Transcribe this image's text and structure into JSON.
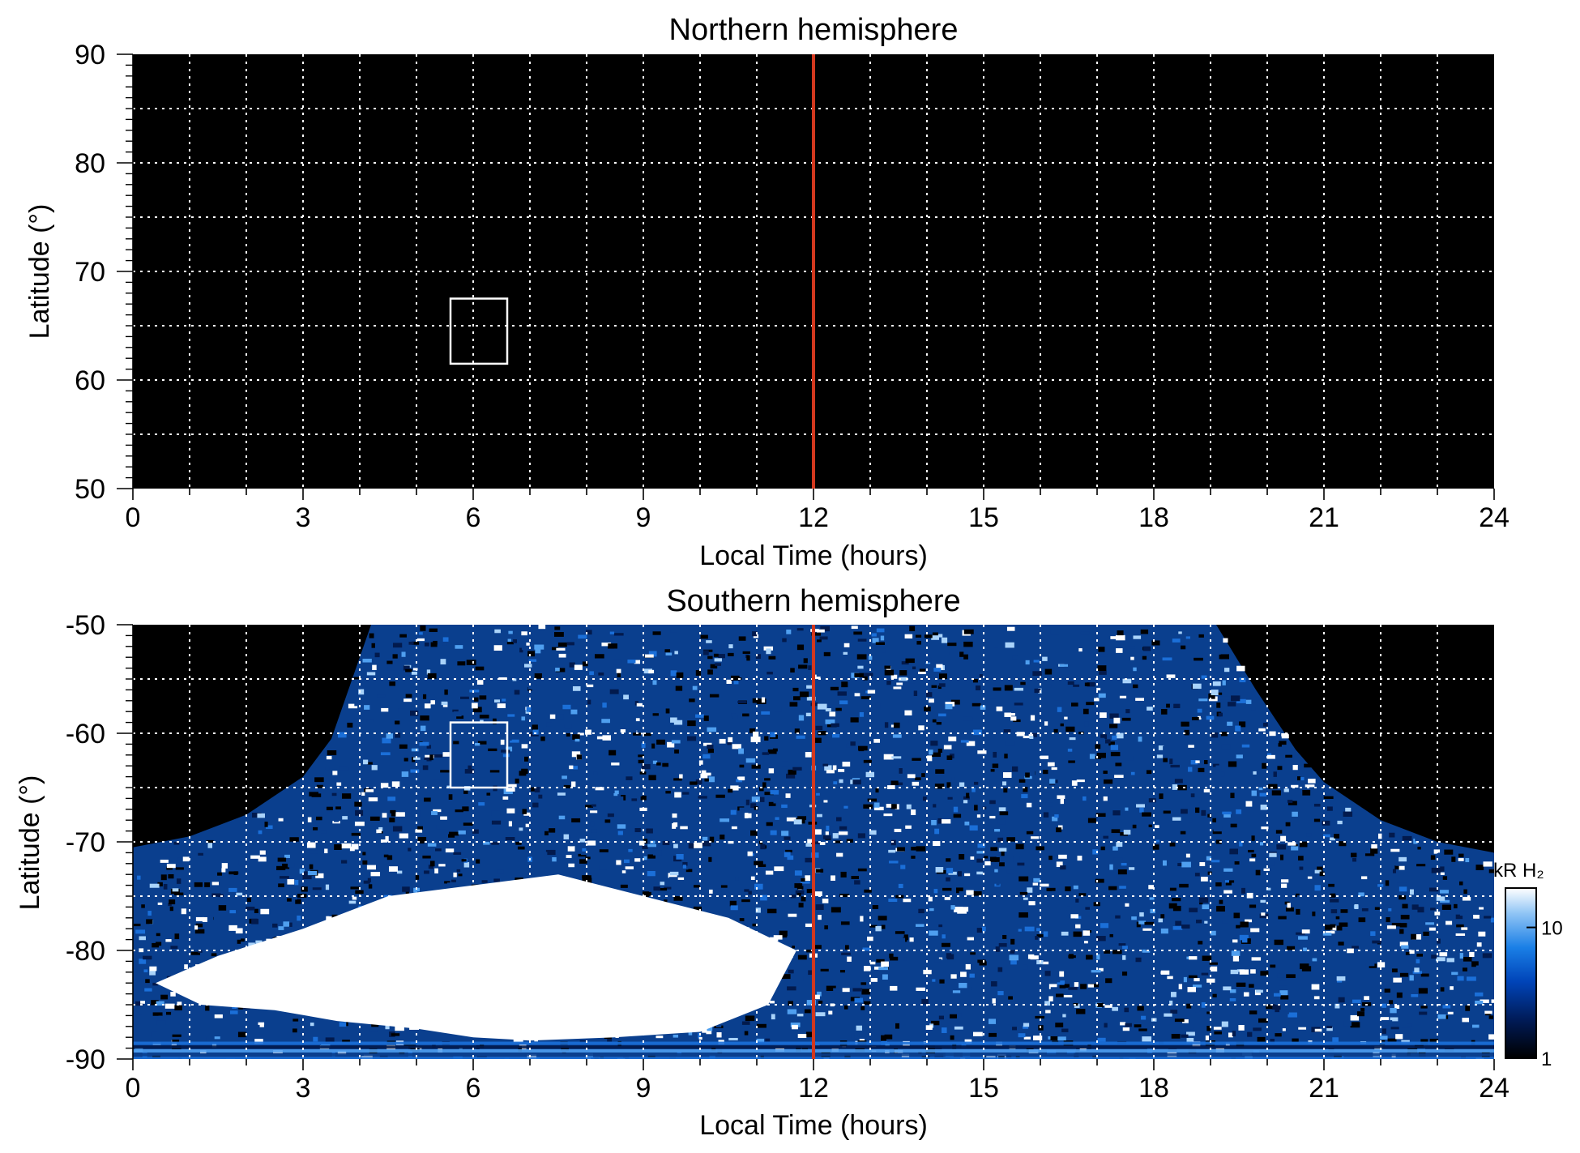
{
  "chart_data": [
    {
      "type": "heatmap",
      "title": "Northern hemisphere",
      "xlabel": "Local Time (hours)",
      "ylabel": "Latitude (°)",
      "xlim": [
        0,
        24
      ],
      "ylim": [
        50,
        90
      ],
      "xticks": [
        "0",
        "3",
        "6",
        "9",
        "12",
        "15",
        "18",
        "21",
        "24"
      ],
      "yticks": [
        "50",
        "60",
        "70",
        "80",
        "90"
      ],
      "grid": true,
      "background": "#000000",
      "observed_region": "none (no emission data)",
      "noon_line": {
        "x": 12,
        "color": "#d2381e"
      },
      "box": {
        "x": [
          5.6,
          6.6
        ],
        "y": [
          61.5,
          67.5
        ],
        "color": "#ffffff"
      }
    },
    {
      "type": "heatmap",
      "title": "Southern hemisphere",
      "xlabel": "Local Time (hours)",
      "ylabel": "Latitude (°)",
      "xlim": [
        0,
        24
      ],
      "ylim": [
        -90,
        -50
      ],
      "xticks": [
        "0",
        "3",
        "6",
        "9",
        "12",
        "15",
        "18",
        "21",
        "24"
      ],
      "yticks": [
        "-90",
        "-80",
        "-70",
        "-60",
        "-50"
      ],
      "grid": true,
      "background": "#000000",
      "coverage_boundary": {
        "x": [
          0,
          1,
          2,
          3,
          3.5,
          4.2,
          19.1,
          19.8,
          20.5,
          21,
          22,
          23,
          24
        ],
        "y": [
          -70.5,
          -69.5,
          -67.5,
          -64,
          -60.5,
          -50,
          -50,
          -56,
          -61.5,
          -64.5,
          -68,
          -70,
          -71
        ]
      },
      "bright_auroral_region": {
        "x": [
          0.4,
          1.5,
          3,
          4.5,
          6,
          7.5,
          9,
          10.5,
          11.7,
          11.2,
          10,
          8.5,
          7,
          6,
          5,
          3.6,
          2.5,
          1.2,
          0.4
        ],
        "y": [
          -83,
          -80.5,
          -78,
          -75,
          -74,
          -73,
          -75,
          -77,
          -80,
          -85,
          -87.5,
          -88,
          -88.3,
          -88,
          -87.2,
          -86.5,
          -85.5,
          -85,
          -83
        ]
      },
      "noon_line": {
        "x": 12,
        "color": "#d2381e"
      },
      "box": {
        "x": [
          5.6,
          6.6
        ],
        "y": [
          -65,
          -59
        ],
        "color": "#ffffff"
      },
      "colorbar": {
        "label": "kR H₂",
        "ticks": [
          "1",
          "10"
        ],
        "range": [
          1,
          20
        ],
        "scale": "log",
        "colors": [
          "#000000",
          "#001a55",
          "#0044b8",
          "#1a7fe6",
          "#8fc4f5",
          "#ffffff"
        ]
      }
    }
  ]
}
